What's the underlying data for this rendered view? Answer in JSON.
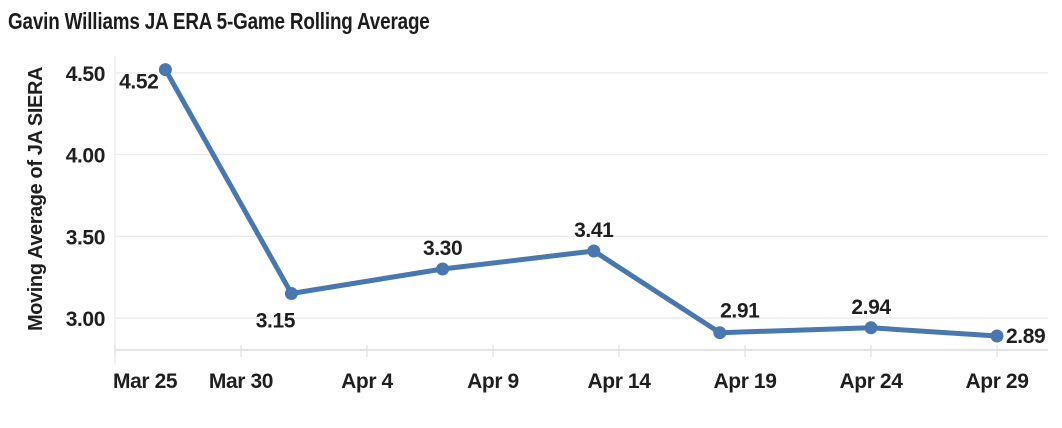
{
  "chart_data": {
    "type": "line",
    "title": "Gavin Williams JA ERA 5-Game Rolling Average",
    "ylabel": "Moving Average of JA SIERA",
    "ylim": [
      2.8,
      4.6
    ],
    "grid": "horizontal",
    "legend": "none",
    "line_color": "#4878AF",
    "text_color": "#1f1f1f",
    "grid_color": "#ececec",
    "axis_color": "#e3e3e3",
    "y_ticks": [
      {
        "value": 4.5,
        "label": "4.50"
      },
      {
        "value": 4.0,
        "label": "4.00"
      },
      {
        "value": 3.5,
        "label": "3.50"
      },
      {
        "value": 3.0,
        "label": "3.00"
      }
    ],
    "x_ticks": [
      {
        "label": "Mar 25",
        "day": 0,
        "align": "start"
      },
      {
        "label": "Mar 30",
        "day": 5
      },
      {
        "label": "Apr 4",
        "day": 10
      },
      {
        "label": "Apr 9",
        "day": 15
      },
      {
        "label": "Apr 14",
        "day": 20
      },
      {
        "label": "Apr 19",
        "day": 25
      },
      {
        "label": "Apr 24",
        "day": 30
      },
      {
        "label": "Apr 29",
        "day": 35
      }
    ],
    "series": [
      {
        "name": "JA ERA 5-Game Rolling Average",
        "points": [
          {
            "date_est": "Mar 27",
            "day": 2,
            "value": 4.52,
            "label": "4.52",
            "label_placement": "left"
          },
          {
            "date_est": "Apr 1",
            "day": 7,
            "value": 3.15,
            "label": "3.15",
            "label_placement": "below"
          },
          {
            "date_est": "Apr 7",
            "day": 13,
            "value": 3.3,
            "label": "3.30",
            "label_placement": "above"
          },
          {
            "date_est": "Apr 13",
            "day": 19,
            "value": 3.41,
            "label": "3.41",
            "label_placement": "above"
          },
          {
            "date_est": "Apr 18",
            "day": 24,
            "value": 2.91,
            "label": "2.91",
            "label_placement": "above-right"
          },
          {
            "date_est": "Apr 24",
            "day": 30,
            "value": 2.94,
            "label": "2.94",
            "label_placement": "above"
          },
          {
            "date_est": "Apr 29",
            "day": 35,
            "value": 2.89,
            "label": "2.89",
            "label_placement": "right"
          }
        ]
      }
    ]
  }
}
